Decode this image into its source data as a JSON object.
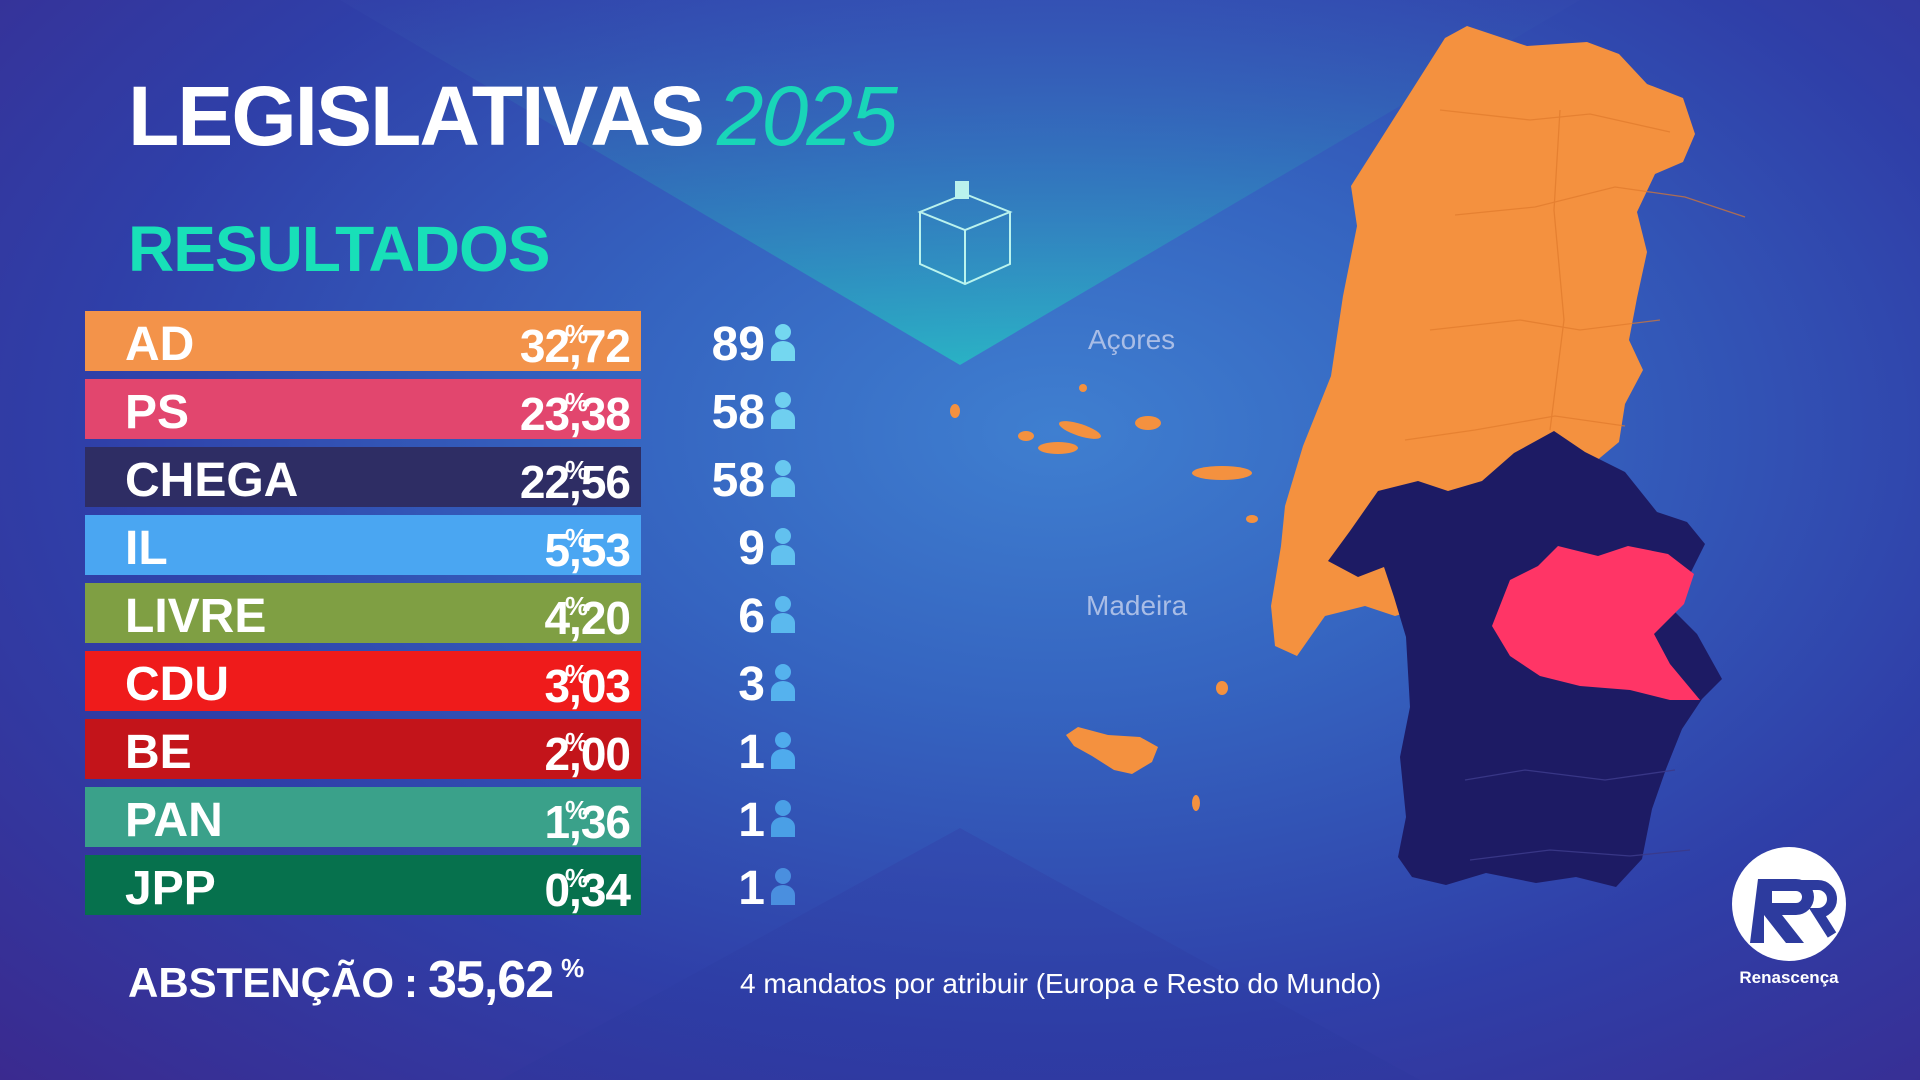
{
  "header": {
    "title": "LEGISLATIVAS",
    "year": "2025",
    "subtitle": "RESULTADOS"
  },
  "pct_symbol": "%",
  "chart_data": {
    "type": "table",
    "columns": [
      "party",
      "percent",
      "seats"
    ],
    "rows": [
      {
        "party": "AD",
        "percent": "32,72",
        "seats": "89",
        "color": "#f3934a"
      },
      {
        "party": "PS",
        "percent": "23,38",
        "seats": "58",
        "color": "#e2466e"
      },
      {
        "party": "CHEGA",
        "percent": "22,56",
        "seats": "58",
        "color": "#2e2d64"
      },
      {
        "party": "IL",
        "percent": "5,53",
        "seats": "9",
        "color": "#4aa6f2"
      },
      {
        "party": "LIVRE",
        "percent": "4,20",
        "seats": "6",
        "color": "#7f9f43"
      },
      {
        "party": "CDU",
        "percent": "3,03",
        "seats": "3",
        "color": "#ef1b1b"
      },
      {
        "party": "BE",
        "percent": "2,00",
        "seats": "1",
        "color": "#c3141a"
      },
      {
        "party": "PAN",
        "percent": "1,36",
        "seats": "1",
        "color": "#3aa18a"
      },
      {
        "party": "JPP",
        "percent": "0,34",
        "seats": "1",
        "color": "#06714d"
      }
    ]
  },
  "footer": {
    "abstention_label": "ABSTENÇÃO",
    "abstention_colon": ":",
    "abstention_value": "35,62",
    "note": "4 mandatos por atribuir (Europa e Resto do Mundo)"
  },
  "map": {
    "label_azores": "Açores",
    "label_madeira": "Madeira",
    "colors": {
      "ad": "#f4913f",
      "ps": "#ff3566",
      "chega": "#1d1b64"
    }
  },
  "logo": {
    "name": "Renascença",
    "icon": "rr-logo-icon"
  },
  "icons": {
    "seat": "person-icon",
    "ballot": "ballot-box-icon"
  }
}
